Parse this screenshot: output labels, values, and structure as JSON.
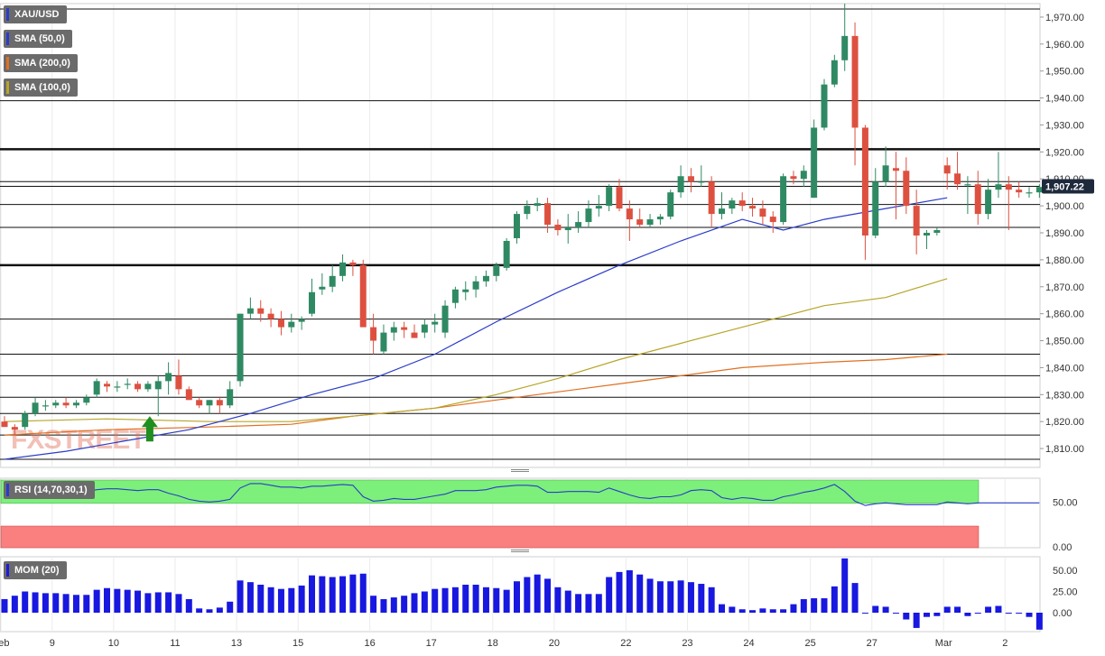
{
  "chart_data": {
    "type": "candlestick",
    "symbol": "XAU/USD",
    "indicator_labels": [
      "SMA (50,0)",
      "SMA (200,0)",
      "SMA (100,0)"
    ],
    "indicator_colors": [
      "#2a3cc8",
      "#e07020",
      "#b7a52a"
    ],
    "last_price": "1,907.22",
    "watermark": "FXSTREET",
    "x_labels": [
      {
        "text": "Feb",
        "i": 0
      },
      {
        "text": "9",
        "i": 5
      },
      {
        "text": "10",
        "i": 11
      },
      {
        "text": "11",
        "i": 17
      },
      {
        "text": "13",
        "i": 23
      },
      {
        "text": "15",
        "i": 29
      },
      {
        "text": "16",
        "i": 36
      },
      {
        "text": "17",
        "i": 42
      },
      {
        "text": "18",
        "i": 48
      },
      {
        "text": "20",
        "i": 54
      },
      {
        "text": "22",
        "i": 61
      },
      {
        "text": "23",
        "i": 67
      },
      {
        "text": "24",
        "i": 73
      },
      {
        "text": "25",
        "i": 79
      },
      {
        "text": "27",
        "i": 85
      },
      {
        "text": "Mar",
        "i": 92
      },
      {
        "text": "2",
        "i": 98
      }
    ],
    "price_axis": {
      "min": 1803,
      "max": 1975,
      "ticks": [
        1810,
        1820,
        1830,
        1840,
        1850,
        1860,
        1870,
        1880,
        1890,
        1900,
        1910,
        1920,
        1930,
        1940,
        1950,
        1960,
        1970
      ]
    },
    "h_lines": [
      {
        "y": 1973,
        "bold": false
      },
      {
        "y": 1939,
        "bold": false
      },
      {
        "y": 1921,
        "bold": true
      },
      {
        "y": 1909,
        "bold": false
      },
      {
        "y": 1907.22,
        "bold": false
      },
      {
        "y": 1900.5,
        "bold": false
      },
      {
        "y": 1892,
        "bold": false
      },
      {
        "y": 1878,
        "bold": true
      },
      {
        "y": 1858,
        "bold": false
      },
      {
        "y": 1845,
        "bold": false
      },
      {
        "y": 1837,
        "bold": false
      },
      {
        "y": 1829,
        "bold": false
      },
      {
        "y": 1823,
        "bold": false
      },
      {
        "y": 1815,
        "bold": false
      },
      {
        "y": 1806,
        "bold": false
      }
    ],
    "candles": [
      [
        1820,
        1822,
        1818,
        1818
      ],
      [
        1818,
        1819,
        1815,
        1817
      ],
      [
        1818,
        1824,
        1817,
        1823
      ],
      [
        1823,
        1829,
        1822,
        1827
      ],
      [
        1826,
        1828,
        1824,
        1826
      ],
      [
        1826,
        1828,
        1825,
        1827
      ],
      [
        1827,
        1829,
        1825,
        1826
      ],
      [
        1826,
        1828,
        1825,
        1827
      ],
      [
        1827,
        1830,
        1826,
        1829
      ],
      [
        1830,
        1836,
        1829,
        1835
      ],
      [
        1834,
        1835,
        1831,
        1833
      ],
      [
        1833,
        1835,
        1831,
        1833
      ],
      [
        1834,
        1836,
        1832,
        1834
      ],
      [
        1834,
        1835,
        1831,
        1832
      ],
      [
        1832,
        1835,
        1831,
        1834
      ],
      [
        1832,
        1837,
        1822,
        1835
      ],
      [
        1835,
        1842,
        1830,
        1838
      ],
      [
        1837,
        1843,
        1830,
        1832
      ],
      [
        1832,
        1833,
        1828,
        1828
      ],
      [
        1828,
        1829,
        1825,
        1826
      ],
      [
        1826,
        1828,
        1823,
        1828
      ],
      [
        1828,
        1829,
        1823,
        1826
      ],
      [
        1826,
        1835,
        1825,
        1832
      ],
      [
        1835,
        1860,
        1833,
        1860
      ],
      [
        1860,
        1866,
        1858,
        1862
      ],
      [
        1862,
        1865,
        1857,
        1860
      ],
      [
        1860,
        1862,
        1855,
        1858
      ],
      [
        1858,
        1861,
        1852,
        1855
      ],
      [
        1855,
        1860,
        1853,
        1857
      ],
      [
        1857,
        1859,
        1854,
        1858
      ],
      [
        1860,
        1873,
        1859,
        1868
      ],
      [
        1869,
        1875,
        1867,
        1870
      ],
      [
        1870,
        1878,
        1868,
        1874
      ],
      [
        1874,
        1882,
        1872,
        1879
      ],
      [
        1879,
        1880,
        1874,
        1878
      ],
      [
        1878,
        1880,
        1855,
        1855
      ],
      [
        1855,
        1860,
        1845,
        1850
      ],
      [
        1846,
        1856,
        1845,
        1853
      ],
      [
        1853,
        1857,
        1850,
        1855
      ],
      [
        1855,
        1857,
        1851,
        1854
      ],
      [
        1853,
        1856,
        1851,
        1851
      ],
      [
        1853,
        1858,
        1851,
        1856
      ],
      [
        1856,
        1860,
        1853,
        1857
      ],
      [
        1853,
        1865,
        1851,
        1863
      ],
      [
        1864,
        1870,
        1862,
        1869
      ],
      [
        1868,
        1872,
        1865,
        1869
      ],
      [
        1869,
        1874,
        1866,
        1872
      ],
      [
        1872,
        1876,
        1870,
        1874
      ],
      [
        1874,
        1879,
        1872,
        1878
      ],
      [
        1877,
        1888,
        1876,
        1887
      ],
      [
        1888,
        1898,
        1886,
        1897
      ],
      [
        1897,
        1902,
        1895,
        1900
      ],
      [
        1900,
        1903,
        1898,
        1901
      ],
      [
        1901,
        1903,
        1890,
        1893
      ],
      [
        1893,
        1895,
        1889,
        1891
      ],
      [
        1891,
        1897,
        1886,
        1892
      ],
      [
        1892,
        1898,
        1890,
        1894
      ],
      [
        1894,
        1902,
        1892,
        1899
      ],
      [
        1899,
        1904,
        1896,
        1900
      ],
      [
        1900,
        1908,
        1898,
        1907
      ],
      [
        1907,
        1910,
        1898,
        1899
      ],
      [
        1899,
        1902,
        1887,
        1895
      ],
      [
        1895,
        1899,
        1892,
        1893
      ],
      [
        1893,
        1897,
        1892,
        1895
      ],
      [
        1895,
        1897,
        1893,
        1896
      ],
      [
        1896,
        1906,
        1895,
        1905
      ],
      [
        1905,
        1915,
        1903,
        1911
      ],
      [
        1911,
        1914,
        1905,
        1909
      ],
      [
        1909,
        1915,
        1907,
        1909
      ],
      [
        1909,
        1911,
        1892,
        1897
      ],
      [
        1897,
        1905,
        1895,
        1899
      ],
      [
        1899,
        1903,
        1897,
        1902
      ],
      [
        1902,
        1905,
        1898,
        1900
      ],
      [
        1900,
        1903,
        1896,
        1899
      ],
      [
        1899,
        1902,
        1893,
        1896
      ],
      [
        1896,
        1898,
        1890,
        1894
      ],
      [
        1894,
        1912,
        1893,
        1911
      ],
      [
        1911,
        1913,
        1908,
        1910
      ],
      [
        1910,
        1915,
        1907,
        1913
      ],
      [
        1903,
        1932,
        1903,
        1929
      ],
      [
        1929,
        1947,
        1928,
        1945
      ],
      [
        1945,
        1956,
        1944,
        1954
      ],
      [
        1954,
        1975,
        1950,
        1963
      ],
      [
        1963,
        1968,
        1915,
        1929
      ],
      [
        1929,
        1930,
        1880,
        1889
      ],
      [
        1889,
        1914,
        1888,
        1909
      ],
      [
        1909,
        1922,
        1907,
        1915
      ],
      [
        1914,
        1920,
        1895,
        1913
      ],
      [
        1913,
        1918,
        1897,
        1900
      ],
      [
        1900,
        1906,
        1882,
        1889
      ],
      [
        1889,
        1891,
        1884,
        1890
      ],
      [
        1890,
        1892,
        1889,
        1891
      ],
      [
        1915,
        1918,
        1906,
        1912
      ],
      [
        1912,
        1920,
        1906,
        1908
      ],
      [
        1908,
        1911,
        1897,
        1908
      ],
      [
        1908,
        1913,
        1893,
        1897
      ],
      [
        1897,
        1910,
        1895,
        1906
      ],
      [
        1906,
        1920,
        1903,
        1908
      ],
      [
        1908,
        1911,
        1891,
        1906
      ],
      [
        1906,
        1909,
        1903,
        1905
      ],
      [
        1905,
        1907,
        1903,
        1905
      ],
      [
        1905,
        1908,
        1903,
        1907
      ]
    ],
    "sma50": [
      [
        0,
        1806
      ],
      [
        6,
        1809
      ],
      [
        12,
        1813
      ],
      [
        18,
        1817
      ],
      [
        24,
        1823
      ],
      [
        30,
        1830
      ],
      [
        36,
        1836
      ],
      [
        42,
        1845
      ],
      [
        48,
        1857
      ],
      [
        54,
        1868
      ],
      [
        60,
        1878
      ],
      [
        66,
        1887
      ],
      [
        72,
        1895
      ],
      [
        76,
        1891
      ],
      [
        80,
        1895
      ],
      [
        86,
        1899
      ],
      [
        92,
        1903
      ]
    ],
    "sma100": [
      [
        0,
        1820
      ],
      [
        10,
        1821
      ],
      [
        20,
        1820
      ],
      [
        28,
        1820
      ],
      [
        34,
        1822
      ],
      [
        42,
        1825
      ],
      [
        48,
        1830
      ],
      [
        54,
        1836
      ],
      [
        60,
        1843
      ],
      [
        66,
        1849
      ],
      [
        72,
        1855
      ],
      [
        80,
        1863
      ],
      [
        86,
        1866
      ],
      [
        92,
        1873
      ]
    ],
    "sma200": [
      [
        0,
        1815
      ],
      [
        10,
        1817
      ],
      [
        20,
        1818
      ],
      [
        28,
        1819
      ],
      [
        34,
        1822
      ],
      [
        42,
        1825
      ],
      [
        48,
        1828
      ],
      [
        54,
        1831
      ],
      [
        60,
        1834
      ],
      [
        66,
        1837
      ],
      [
        72,
        1840
      ],
      [
        80,
        1842
      ],
      [
        86,
        1843
      ],
      [
        92,
        1845
      ]
    ],
    "rsi": {
      "label": "RSI (14,70,30,1)",
      "ticks": [
        "50.00",
        "0.00"
      ],
      "values": [
        58,
        59,
        60,
        62,
        63,
        64,
        64,
        63,
        62,
        64,
        65,
        65,
        64,
        63,
        64,
        64,
        60,
        57,
        53,
        51,
        50,
        51,
        53,
        66,
        71,
        71,
        69,
        67,
        67,
        66,
        68,
        68,
        69,
        70,
        69,
        56,
        51,
        52,
        54,
        53,
        53,
        55,
        57,
        59,
        63,
        63,
        63,
        64,
        67,
        68,
        69,
        69,
        68,
        61,
        61,
        62,
        62,
        62,
        61,
        66,
        62,
        58,
        55,
        54,
        56,
        56,
        58,
        63,
        64,
        63,
        55,
        53,
        55,
        54,
        52,
        52,
        56,
        58,
        61,
        63,
        66,
        70,
        62,
        51,
        46,
        48,
        49,
        48,
        47,
        47,
        47,
        47,
        50,
        49,
        48,
        49,
        49,
        49,
        49,
        49,
        49,
        49
      ]
    },
    "mom": {
      "label": "MOM (20)",
      "ticks": [
        "50.00",
        "25.00",
        "0.00"
      ],
      "values": [
        16,
        20,
        25,
        24,
        23,
        23,
        22,
        21,
        21,
        27,
        29,
        28,
        27,
        26,
        23,
        24,
        24,
        22,
        16,
        5,
        4,
        6,
        13,
        38,
        36,
        33,
        30,
        28,
        29,
        32,
        44,
        43,
        42,
        43,
        45,
        46,
        20,
        16,
        18,
        20,
        23,
        25,
        28,
        29,
        30,
        33,
        33,
        30,
        29,
        27,
        37,
        42,
        45,
        40,
        30,
        26,
        22,
        22,
        22,
        42,
        48,
        50,
        45,
        40,
        37,
        37,
        38,
        36,
        34,
        30,
        10,
        7,
        4,
        3,
        5,
        4,
        4,
        10,
        16,
        17,
        17,
        31,
        64,
        35,
        0,
        8,
        7,
        0,
        -8,
        -18,
        -5,
        -4,
        7,
        7,
        -4,
        0,
        7,
        8,
        -1,
        -1,
        -5,
        -20
      ]
    }
  }
}
